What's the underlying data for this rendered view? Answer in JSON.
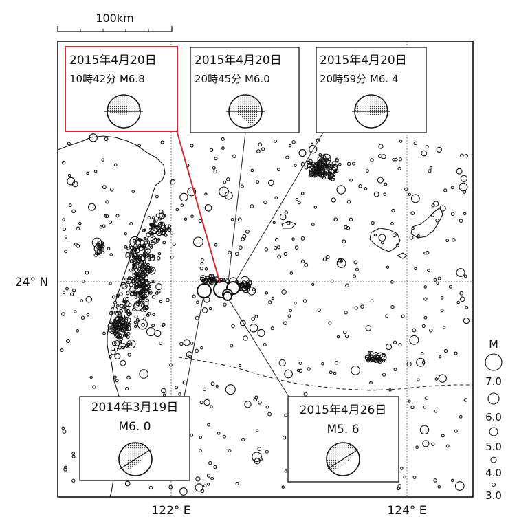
{
  "scale_bar": {
    "label": "100km"
  },
  "axes": {
    "lat_label": "24° N",
    "lon_labels": [
      "122° E",
      "124° E"
    ]
  },
  "mechanisms": [
    {
      "date": "2015年4月20日",
      "detail": "10時42分 M6.8",
      "highlight": true
    },
    {
      "date": "2015年4月20日",
      "detail": "20時45分 M6.0",
      "highlight": false
    },
    {
      "date": "2015年4月20日",
      "detail": "20時59分 M6. 4",
      "highlight": false
    },
    {
      "date": "2014年3月19日",
      "detail": "M6. 0",
      "highlight": false
    },
    {
      "date": "2015年4月26日",
      "detail": "M5. 6",
      "highlight": false
    }
  ],
  "legend": {
    "title": "M",
    "magnitudes": [
      "7.0",
      "6.0",
      "5.0",
      "4.0",
      "3.0"
    ]
  },
  "colors": {
    "highlight": "#d42a2a",
    "ink": "#111111"
  }
}
